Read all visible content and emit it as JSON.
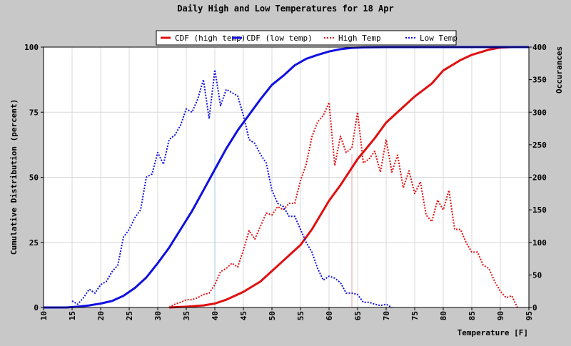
{
  "chart_data": {
    "type": "line",
    "title": "Daily High and Low Temperatures for 18 Apr",
    "xlabel": "Temperature [F]",
    "ylabel_left": "Cumulative Distribution (percent)",
    "ylabel_right": "Occurances",
    "xlim": [
      10,
      95
    ],
    "ylim_left": [
      0,
      100
    ],
    "ylim_right": [
      0,
      400
    ],
    "x_ticks": [
      "10",
      "15",
      "20",
      "25",
      "30",
      "35",
      "40",
      "45",
      "50",
      "55",
      "60",
      "65",
      "70",
      "75",
      "80",
      "85",
      "90",
      "95"
    ],
    "y_left_ticks": [
      "0",
      "25",
      "50",
      "75",
      "100"
    ],
    "y_right_ticks": [
      "0",
      "50",
      "100",
      "150",
      "200",
      "250",
      "300",
      "350",
      "400"
    ],
    "grid": true,
    "legend_position": "top",
    "markers": [
      {
        "x": 40,
        "color": "#a0c8e0"
      },
      {
        "x": 64,
        "color": "#e0a0a0"
      }
    ],
    "series": [
      {
        "name": "CDF (high temp)",
        "axis": "left",
        "style": "solid",
        "color": "#e01010",
        "x": [
          32,
          35,
          38,
          40,
          42,
          45,
          48,
          50,
          52,
          55,
          57,
          60,
          62,
          65,
          68,
          70,
          73,
          75,
          78,
          80,
          83,
          85,
          88,
          90,
          92,
          95
        ],
        "y": [
          0,
          0.3,
          0.8,
          1.5,
          3,
          6,
          10,
          14,
          18,
          24,
          30,
          41,
          47,
          57,
          65,
          71,
          77,
          81,
          86,
          91,
          95,
          97,
          99,
          99.8,
          100,
          100
        ]
      },
      {
        "name": "CDF (low temp)",
        "axis": "left",
        "style": "solid",
        "color": "#1010e0",
        "x": [
          10,
          14,
          16,
          18,
          20,
          22,
          24,
          26,
          28,
          30,
          32,
          34,
          36,
          38,
          40,
          42,
          44,
          46,
          48,
          50,
          52,
          54,
          56,
          58,
          60,
          62,
          64,
          66,
          70,
          95
        ],
        "y": [
          0,
          0,
          0.3,
          0.8,
          1.5,
          2.5,
          4.5,
          7.5,
          11.5,
          17,
          23,
          30,
          37,
          45,
          53,
          61,
          68,
          74,
          80,
          85.5,
          89,
          93,
          95.5,
          97,
          98.3,
          99.2,
          99.7,
          99.9,
          100,
          100
        ]
      },
      {
        "name": "High Temp",
        "axis": "right",
        "style": "dotted",
        "color": "#e01010",
        "x": [
          32,
          33,
          34,
          35,
          36,
          37,
          38,
          39,
          40,
          41,
          42,
          43,
          44,
          45,
          46,
          47,
          48,
          49,
          50,
          51,
          52,
          53,
          54,
          55,
          56,
          57,
          58,
          59,
          60,
          61,
          62,
          63,
          64,
          65,
          66,
          67,
          68,
          69,
          70,
          71,
          72,
          73,
          74,
          75,
          76,
          77,
          78,
          79,
          80,
          81,
          82,
          83,
          84,
          85,
          86,
          87,
          88,
          89,
          90,
          91,
          92,
          93
        ],
        "y": [
          0,
          5,
          8,
          12,
          12,
          15,
          20,
          22,
          35,
          55,
          60,
          68,
          62,
          88,
          118,
          105,
          125,
          145,
          142,
          155,
          150,
          160,
          160,
          195,
          220,
          262,
          285,
          295,
          315,
          218,
          263,
          238,
          245,
          300,
          222,
          228,
          240,
          208,
          258,
          208,
          234,
          184,
          210,
          175,
          193,
          142,
          132,
          165,
          150,
          180,
          120,
          120,
          100,
          85,
          85,
          65,
          60,
          40,
          25,
          15,
          18,
          0
        ]
      },
      {
        "name": "Low Temp",
        "axis": "right",
        "style": "dotted",
        "color": "#1010e0",
        "x": [
          15,
          16,
          17,
          18,
          19,
          20,
          21,
          22,
          23,
          24,
          25,
          26,
          27,
          28,
          29,
          30,
          31,
          32,
          33,
          34,
          35,
          36,
          37,
          38,
          39,
          40,
          41,
          42,
          43,
          44,
          45,
          46,
          47,
          48,
          49,
          50,
          51,
          52,
          53,
          54,
          55,
          56,
          57,
          58,
          59,
          60,
          61,
          62,
          63,
          64,
          65,
          66,
          67,
          68,
          69,
          70,
          71
        ],
        "y": [
          10,
          5,
          15,
          28,
          22,
          35,
          40,
          55,
          65,
          108,
          120,
          138,
          150,
          200,
          205,
          238,
          220,
          258,
          265,
          280,
          305,
          300,
          320,
          350,
          290,
          365,
          310,
          335,
          330,
          325,
          295,
          258,
          252,
          235,
          222,
          180,
          160,
          155,
          140,
          140,
          120,
          100,
          85,
          60,
          42,
          48,
          45,
          38,
          22,
          22,
          20,
          8,
          8,
          5,
          3,
          5,
          0
        ]
      }
    ]
  }
}
